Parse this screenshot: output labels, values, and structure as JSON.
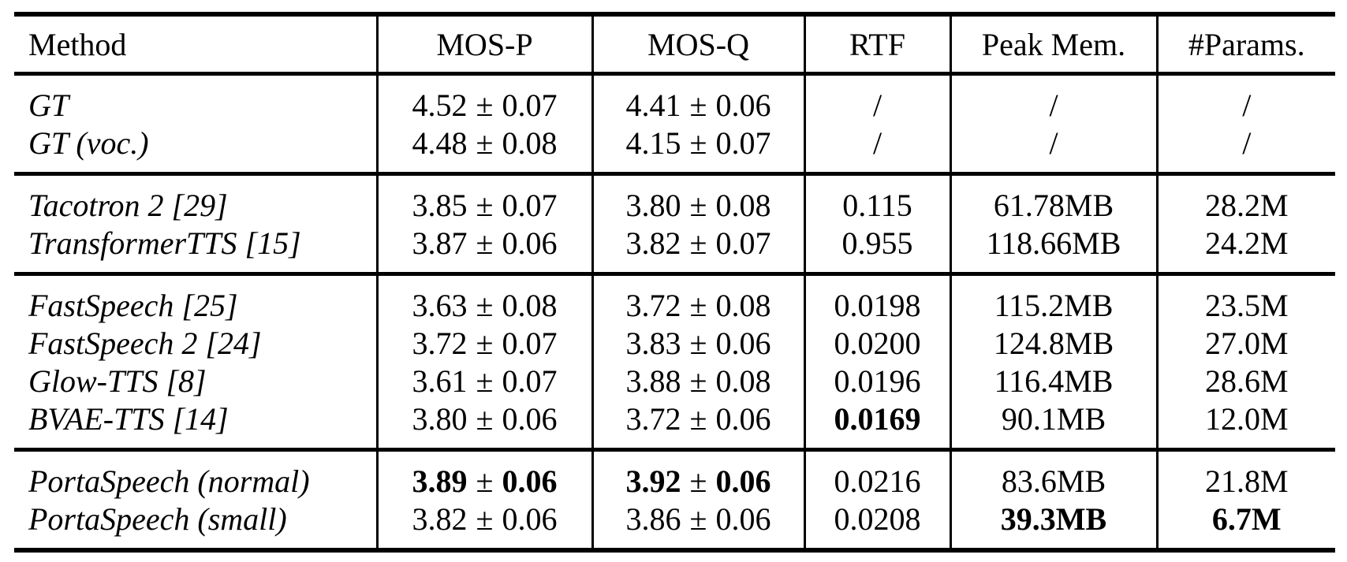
{
  "colors": {
    "text": "#000000",
    "background": "#ffffff",
    "rules": "#000000"
  },
  "table": {
    "columns": [
      "Method",
      "MOS-P",
      "MOS-Q",
      "RTF",
      "Peak Mem.",
      "#Params."
    ],
    "pm": "±",
    "groups": [
      {
        "rows": [
          {
            "method": "GT",
            "mosp": {
              "mean": "4.52",
              "std": "0.07",
              "bold": false
            },
            "mosq": {
              "mean": "4.41",
              "std": "0.06",
              "bold": false
            },
            "rtf": {
              "text": "/",
              "bold": false
            },
            "mem": {
              "text": "/",
              "bold": false
            },
            "params": {
              "text": "/",
              "bold": false
            }
          },
          {
            "method": "GT (voc.)",
            "mosp": {
              "mean": "4.48",
              "std": "0.08",
              "bold": false
            },
            "mosq": {
              "mean": "4.15",
              "std": "0.07",
              "bold": false
            },
            "rtf": {
              "text": "/",
              "bold": false
            },
            "mem": {
              "text": "/",
              "bold": false
            },
            "params": {
              "text": "/",
              "bold": false
            }
          }
        ]
      },
      {
        "rows": [
          {
            "method": "Tacotron 2 [29]",
            "mosp": {
              "mean": "3.85",
              "std": "0.07",
              "bold": false
            },
            "mosq": {
              "mean": "3.80",
              "std": "0.08",
              "bold": false
            },
            "rtf": {
              "text": "0.115",
              "bold": false
            },
            "mem": {
              "text": "61.78MB",
              "bold": false
            },
            "params": {
              "text": "28.2M",
              "bold": false
            }
          },
          {
            "method": "TransformerTTS [15]",
            "mosp": {
              "mean": "3.87",
              "std": "0.06",
              "bold": false
            },
            "mosq": {
              "mean": "3.82",
              "std": "0.07",
              "bold": false
            },
            "rtf": {
              "text": "0.955",
              "bold": false
            },
            "mem": {
              "text": "118.66MB",
              "bold": false
            },
            "params": {
              "text": "24.2M",
              "bold": false
            }
          }
        ]
      },
      {
        "rows": [
          {
            "method": "FastSpeech [25]",
            "mosp": {
              "mean": "3.63",
              "std": "0.08",
              "bold": false
            },
            "mosq": {
              "mean": "3.72",
              "std": "0.08",
              "bold": false
            },
            "rtf": {
              "text": "0.0198",
              "bold": false
            },
            "mem": {
              "text": "115.2MB",
              "bold": false
            },
            "params": {
              "text": "23.5M",
              "bold": false
            }
          },
          {
            "method": "FastSpeech 2 [24]",
            "mosp": {
              "mean": "3.72",
              "std": "0.07",
              "bold": false
            },
            "mosq": {
              "mean": "3.83",
              "std": "0.06",
              "bold": false
            },
            "rtf": {
              "text": "0.0200",
              "bold": false
            },
            "mem": {
              "text": "124.8MB",
              "bold": false
            },
            "params": {
              "text": "27.0M",
              "bold": false
            }
          },
          {
            "method": "Glow-TTS [8]",
            "mosp": {
              "mean": "3.61",
              "std": "0.07",
              "bold": false
            },
            "mosq": {
              "mean": "3.88",
              "std": "0.08",
              "bold": false
            },
            "rtf": {
              "text": "0.0196",
              "bold": false
            },
            "mem": {
              "text": "116.4MB",
              "bold": false
            },
            "params": {
              "text": "28.6M",
              "bold": false
            }
          },
          {
            "method": "BVAE-TTS [14]",
            "mosp": {
              "mean": "3.80",
              "std": "0.06",
              "bold": false
            },
            "mosq": {
              "mean": "3.72",
              "std": "0.06",
              "bold": false
            },
            "rtf": {
              "text": "0.0169",
              "bold": true
            },
            "mem": {
              "text": "90.1MB",
              "bold": false
            },
            "params": {
              "text": "12.0M",
              "bold": false
            }
          }
        ]
      },
      {
        "rows": [
          {
            "method": "PortaSpeech (normal)",
            "mosp": {
              "mean": "3.89",
              "std": "0.06",
              "bold": true
            },
            "mosq": {
              "mean": "3.92",
              "std": "0.06",
              "bold": true
            },
            "rtf": {
              "text": "0.0216",
              "bold": false
            },
            "mem": {
              "text": "83.6MB",
              "bold": false
            },
            "params": {
              "text": "21.8M",
              "bold": false
            }
          },
          {
            "method": "PortaSpeech (small)",
            "mosp": {
              "mean": "3.82",
              "std": "0.06",
              "bold": false
            },
            "mosq": {
              "mean": "3.86",
              "std": "0.06",
              "bold": false
            },
            "rtf": {
              "text": "0.0208",
              "bold": false
            },
            "mem": {
              "text": "39.3MB",
              "bold": true
            },
            "params": {
              "text": "6.7M",
              "bold": true
            }
          }
        ]
      }
    ]
  }
}
